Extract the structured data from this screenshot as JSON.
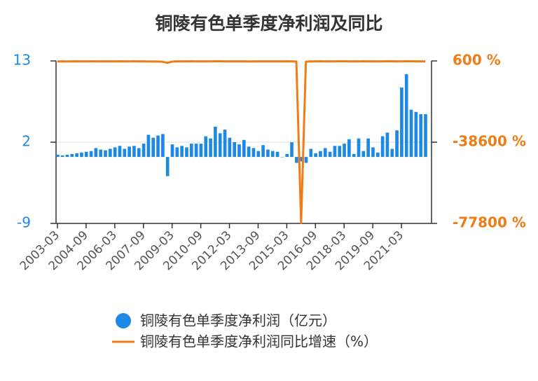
{
  "chart_data": {
    "type": "bar",
    "title": "铜陵有色单季度净利润及同比",
    "categories": [
      "2003-03",
      null,
      null,
      null,
      null,
      null,
      "2004-09",
      null,
      null,
      null,
      null,
      null,
      "2006-03",
      null,
      null,
      null,
      null,
      null,
      "2007-09",
      null,
      null,
      null,
      null,
      null,
      "2009-03",
      null,
      null,
      null,
      null,
      null,
      "2010-09",
      null,
      null,
      null,
      null,
      null,
      "2012-03",
      null,
      null,
      null,
      null,
      null,
      "2013-09",
      null,
      null,
      null,
      null,
      null,
      "2015-03",
      null,
      null,
      null,
      null,
      null,
      "2016-09",
      null,
      null,
      null,
      null,
      null,
      "2018-03",
      null,
      null,
      null,
      null,
      null,
      "2019-09",
      null,
      null,
      null,
      null,
      null,
      "2021-03",
      null,
      null,
      null,
      null,
      null
    ],
    "series": [
      {
        "name": "铜陵有色单季度净利润（亿元）",
        "type": "bar",
        "color": "#1e88e5",
        "values": [
          0.3,
          0.2,
          0.3,
          0.4,
          0.5,
          0.6,
          0.7,
          0.8,
          1.2,
          1.0,
          0.9,
          1.1,
          1.3,
          1.5,
          1.1,
          1.4,
          1.5,
          1.2,
          1.8,
          3.0,
          2.6,
          2.9,
          3.1,
          -2.6,
          1.7,
          1.3,
          1.5,
          1.3,
          1.8,
          1.8,
          1.8,
          2.8,
          2.5,
          4.1,
          3.2,
          3.7,
          2.6,
          2.0,
          1.7,
          2.3,
          1.4,
          1.2,
          0.8,
          1.6,
          1.0,
          0.8,
          0.7,
          0,
          0.4,
          2.0,
          -0.8,
          -0.6,
          -0.8,
          1.1,
          0.5,
          0.8,
          1.2,
          0.7,
          1.5,
          1.5,
          1.8,
          2.4,
          0.4,
          2.5,
          0.8,
          2.5,
          1.3,
          0.6,
          2.8,
          3.3,
          1.1,
          3.6,
          9.4,
          11.2,
          6.4,
          6.1,
          5.8,
          5.8
        ]
      },
      {
        "name": "铜陵有色单季度净利润同比增速（%）",
        "type": "line",
        "axis": "y2",
        "color": "#f07c17",
        "values": [
          350,
          380,
          360,
          400,
          420,
          380,
          390,
          410,
          400,
          380,
          370,
          390,
          400,
          420,
          380,
          400,
          410,
          390,
          380,
          360,
          340,
          300,
          200,
          -300,
          250,
          380,
          400,
          390,
          410,
          400,
          380,
          390,
          400,
          420,
          410,
          380,
          400,
          390,
          380,
          370,
          360,
          380,
          390,
          380,
          400,
          390,
          380,
          400,
          420,
          380,
          300,
          -77500,
          200,
          380,
          400,
          410,
          390,
          380,
          400,
          420,
          410,
          380,
          400,
          390,
          410,
          400,
          380,
          390,
          400,
          410,
          420,
          380,
          400,
          410,
          420,
          400,
          390,
          380
        ]
      }
    ],
    "ylim": [
      -9,
      13
    ],
    "yticks": [
      -9,
      2,
      13
    ],
    "y2lim": [
      -77800,
      600
    ],
    "y2ticks": [
      {
        "value": -77800,
        "label": "-77800 %"
      },
      {
        "value": -38600,
        "label": "-38600 %"
      },
      {
        "value": 600,
        "label": "600 %"
      }
    ],
    "grid": true,
    "legend": "bottom"
  }
}
